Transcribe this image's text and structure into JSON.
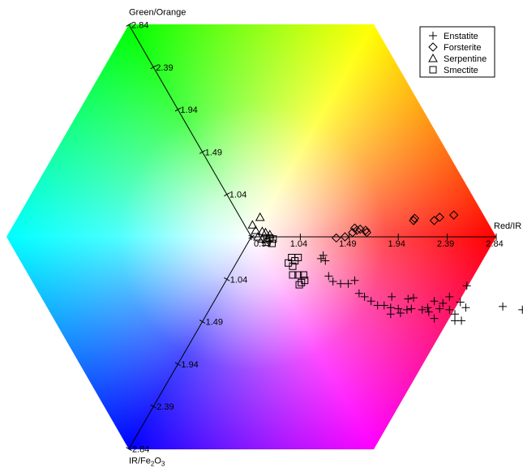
{
  "chart_data": {
    "type": "scatter",
    "title": "",
    "axes": [
      {
        "name": "Red/IR",
        "direction": "0deg",
        "range": [
          0.59,
          2.84
        ],
        "ticks": [
          0.59,
          1.04,
          1.49,
          1.94,
          2.39,
          2.84
        ]
      },
      {
        "name": "Green/Orange",
        "direction": "120deg",
        "range": [
          0.59,
          2.84
        ],
        "ticks": [
          0.59,
          1.04,
          1.49,
          1.94,
          2.39,
          2.84
        ]
      },
      {
        "name": "IR/Fe2O3",
        "name_main": "IR/Fe",
        "name_sub1": "2",
        "name_mid": "O",
        "name_sub2": "3",
        "direction": "240deg",
        "range": [
          0.59,
          2.84
        ],
        "ticks": [
          0.59,
          1.04,
          1.49,
          1.94,
          2.39,
          2.84
        ]
      }
    ],
    "tick_labels": [
      "0.59",
      "1.04",
      "1.49",
      "1.94",
      "2.39",
      "2.84"
    ],
    "background": "RGB color hexagon (red at 0deg, yellow 60deg, green 120deg, cyan 180deg, blue 240deg, magenta 300deg, white center)",
    "legend": {
      "placement": "top-right",
      "entries": [
        {
          "name": "Enstatite",
          "marker": "plus"
        },
        {
          "name": "Forsterite",
          "marker": "diamond"
        },
        {
          "name": "Serpentine",
          "marker": "triangle"
        },
        {
          "name": "Smectite",
          "marker": "square"
        }
      ]
    },
    "series": [
      {
        "name": "Enstatite",
        "marker": "plus",
        "points": [
          [
            0.66,
            -0.17
          ],
          [
            0.68,
            -0.22
          ],
          [
            0.64,
            -0.2
          ],
          [
            0.71,
            -0.36
          ],
          [
            0.75,
            -0.41
          ],
          [
            0.82,
            -0.43
          ],
          [
            0.89,
            -0.43
          ],
          [
            0.95,
            -0.4
          ],
          [
            0.99,
            -0.52
          ],
          [
            1.04,
            -0.55
          ],
          [
            1.1,
            -0.59
          ],
          [
            1.16,
            -0.63
          ],
          [
            1.22,
            -0.63
          ],
          [
            1.28,
            -0.65
          ],
          [
            1.29,
            -0.55
          ],
          [
            1.37,
            -0.7
          ],
          [
            1.43,
            -0.67
          ],
          [
            1.47,
            -0.66
          ],
          [
            1.49,
            -0.56
          ],
          [
            1.57,
            -0.67
          ],
          [
            1.63,
            -0.69
          ],
          [
            1.68,
            -0.59
          ],
          [
            1.68,
            -0.75
          ],
          [
            1.73,
            -0.66
          ],
          [
            1.76,
            -0.61
          ],
          [
            1.82,
            -0.67
          ],
          [
            1.87,
            -0.71
          ],
          [
            1.93,
            -0.77
          ],
          [
            1.92,
            -0.6
          ],
          [
            1.97,
            -0.65
          ],
          [
            1.82,
            -0.55
          ],
          [
            1.98,
            -0.45
          ],
          [
            2.31,
            -0.64
          ],
          [
            2.49,
            -0.67
          ],
          [
            1.87,
            -0.77
          ],
          [
            1.44,
            -0.57
          ],
          [
            1.62,
            -0.65
          ],
          [
            1.35,
            -0.66
          ],
          [
            1.28,
            -0.71
          ]
        ]
      },
      {
        "name": "Forsterite",
        "marker": "diamond",
        "points": [
          [
            0.78,
            -0.01
          ],
          [
            0.86,
            0.0
          ],
          [
            0.93,
            0.04
          ],
          [
            0.95,
            0.08
          ],
          [
            1.0,
            0.07
          ],
          [
            0.97,
            0.06
          ],
          [
            1.05,
            0.06
          ],
          [
            1.06,
            0.04
          ],
          [
            1.49,
            0.15
          ],
          [
            1.5,
            0.17
          ],
          [
            1.68,
            0.15
          ],
          [
            1.73,
            0.18
          ],
          [
            1.86,
            0.2
          ]
        ]
      },
      {
        "name": "Serpentine",
        "marker": "triangle",
        "points": [
          [
            0.01,
            0.11
          ],
          [
            0.08,
            0.18
          ],
          [
            0.04,
            0.06
          ],
          [
            0.1,
            0.05
          ],
          [
            0.06,
            0.0
          ],
          [
            0.1,
            -0.02
          ],
          [
            0.15,
            -0.02
          ],
          [
            0.13,
            0.04
          ],
          [
            0.17,
            0.02
          ]
        ]
      },
      {
        "name": "Smectite",
        "marker": "square",
        "points": [
          [
            0.14,
            -0.05
          ],
          [
            0.19,
            -0.06
          ],
          [
            0.2,
            -0.02
          ],
          [
            0.17,
            -0.01
          ],
          [
            0.37,
            -0.19
          ],
          [
            0.43,
            -0.19
          ],
          [
            0.4,
            -0.22
          ],
          [
            0.34,
            -0.24
          ],
          [
            0.38,
            -0.27
          ],
          [
            0.38,
            -0.35
          ],
          [
            0.43,
            -0.35
          ],
          [
            0.48,
            -0.35
          ],
          [
            0.49,
            -0.4
          ],
          [
            0.44,
            -0.44
          ],
          [
            0.46,
            -0.42
          ]
        ]
      }
    ]
  }
}
